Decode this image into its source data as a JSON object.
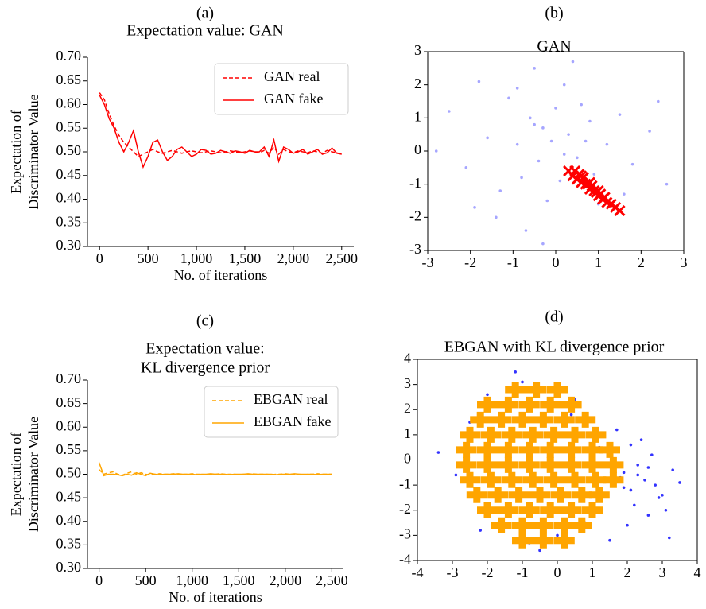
{
  "chart_data": [
    {
      "type": "line",
      "panel_label": "(a)",
      "title": [
        "Expectation value: GAN"
      ],
      "xlabel": "No. of iterations",
      "ylabel": [
        "Expectation of",
        "Discriminator Value"
      ],
      "spines": [
        "left",
        "bottom"
      ],
      "legend": "upper right",
      "x": [
        0,
        50,
        100,
        150,
        200,
        250,
        300,
        350,
        400,
        450,
        500,
        550,
        600,
        650,
        700,
        750,
        800,
        850,
        900,
        950,
        1000,
        1050,
        1100,
        1150,
        1200,
        1250,
        1300,
        1350,
        1400,
        1450,
        1500,
        1550,
        1600,
        1650,
        1700,
        1750,
        1800,
        1850,
        1900,
        1950,
        2000,
        2050,
        2100,
        2150,
        2200,
        2250,
        2300,
        2350,
        2400,
        2450,
        2500
      ],
      "series": [
        {
          "name": "GAN real",
          "color": "#ff0000",
          "linestyle": "dashed",
          "values": [
            0.625,
            0.61,
            0.58,
            0.555,
            0.535,
            0.52,
            0.51,
            0.5,
            0.49,
            0.495,
            0.5,
            0.505,
            0.5,
            0.497,
            0.5,
            0.503,
            0.5,
            0.497,
            0.5,
            0.502,
            0.5,
            0.498,
            0.5,
            0.502,
            0.5,
            0.498,
            0.5,
            0.502,
            0.5,
            0.498,
            0.5,
            0.502,
            0.5,
            0.498,
            0.503,
            0.497,
            0.51,
            0.495,
            0.505,
            0.5,
            0.498,
            0.502,
            0.5,
            0.498,
            0.502,
            0.5,
            0.497,
            0.503,
            0.5,
            0.498,
            0.495
          ]
        },
        {
          "name": "GAN fake",
          "color": "#ff0000",
          "linestyle": "solid",
          "values": [
            0.62,
            0.6,
            0.57,
            0.55,
            0.52,
            0.5,
            0.52,
            0.545,
            0.5,
            0.468,
            0.49,
            0.52,
            0.525,
            0.5,
            0.482,
            0.49,
            0.505,
            0.51,
            0.5,
            0.49,
            0.495,
            0.505,
            0.503,
            0.495,
            0.497,
            0.503,
            0.5,
            0.497,
            0.502,
            0.5,
            0.497,
            0.503,
            0.5,
            0.5,
            0.51,
            0.49,
            0.525,
            0.48,
            0.51,
            0.505,
            0.497,
            0.5,
            0.505,
            0.495,
            0.5,
            0.505,
            0.495,
            0.498,
            0.508,
            0.497,
            0.495
          ]
        }
      ],
      "xlim": [
        -125,
        2625
      ],
      "ylim": [
        0.3,
        0.7
      ],
      "xticks": [
        0,
        500,
        {
          "value": 1000,
          "label": "1,000"
        },
        {
          "value": 1500,
          "label": "1,500"
        },
        {
          "value": 2000,
          "label": "2,000"
        },
        {
          "value": 2500,
          "label": "2,500"
        }
      ],
      "yticks": [
        {
          "value": 0.3,
          "label": "0.30"
        },
        0.35,
        {
          "value": 0.4,
          "label": "0.40"
        },
        0.45,
        {
          "value": 0.5,
          "label": "0.50"
        },
        0.55,
        {
          "value": 0.6,
          "label": "0.60"
        },
        0.65,
        {
          "value": 0.7,
          "label": "0.70"
        }
      ]
    },
    {
      "type": "scatter",
      "panel_label": "(b)",
      "title": [
        "GAN"
      ],
      "spines": [
        "left",
        "bottom",
        "right",
        "top"
      ],
      "series": [
        {
          "color": "#0000ff",
          "marker": "dot",
          "opacity": 0.35,
          "x": [
            -2.5,
            -2.1,
            -1.8,
            -1.6,
            -1.3,
            -1.1,
            -0.9,
            -0.8,
            -0.6,
            -0.5,
            -0.4,
            -0.3,
            -0.2,
            -0.1,
            0,
            0.1,
            0.2,
            0.3,
            0.5,
            0.6,
            0.8,
            1.0,
            1.2,
            1.5,
            1.8,
            2.2,
            2.6,
            -1.4,
            -0.7,
            0.4,
            -2.8,
            -0.9,
            0.9,
            1.6,
            -0.3,
            0.7,
            -1.9,
            2.4,
            -0.5,
            0.2
          ],
          "y": [
            1.2,
            -0.5,
            2.1,
            0.4,
            -1.2,
            1.6,
            0.2,
            -0.8,
            1.0,
            2.5,
            -0.3,
            0.7,
            -1.5,
            0.3,
            1.3,
            -0.9,
            2.0,
            0.5,
            -0.2,
            1.4,
            0.9,
            -1.6,
            0.2,
            1.1,
            -0.4,
            0.6,
            -1.0,
            -2.0,
            -2.4,
            2.7,
            0.0,
            1.9,
            -0.7,
            -1.3,
            -2.8,
            0.3,
            -1.7,
            1.5,
            0.8,
            -0.1
          ]
        },
        {
          "color": "#ff0000",
          "marker": "x",
          "opacity": 1,
          "x": [
            0.3,
            0.4,
            0.45,
            0.5,
            0.55,
            0.6,
            0.65,
            0.7,
            0.75,
            0.8,
            0.85,
            0.9,
            0.95,
            1.0,
            1.05,
            1.1,
            1.15,
            1.2,
            1.3,
            1.4,
            1.5,
            0.6,
            0.8,
            1.0
          ],
          "y": [
            -0.6,
            -0.75,
            -0.6,
            -0.85,
            -0.7,
            -0.95,
            -0.8,
            -1.0,
            -1.0,
            -1.15,
            -1.05,
            -1.2,
            -1.25,
            -1.35,
            -1.3,
            -1.45,
            -1.4,
            -1.55,
            -1.6,
            -1.7,
            -1.8,
            -0.75,
            -0.95,
            -1.2
          ]
        }
      ],
      "xlim": [
        -3,
        3
      ],
      "ylim": [
        -3,
        3
      ],
      "xticks": [
        -3,
        -2,
        -1,
        0,
        1,
        2,
        3
      ],
      "yticks": [
        -3,
        -2,
        -1,
        0,
        1,
        2,
        3
      ]
    },
    {
      "type": "line",
      "panel_label": "(c)",
      "title": [
        "Expectation value:",
        "KL divergence prior"
      ],
      "xlabel": "No. of iterations",
      "ylabel": [
        "Expectation of",
        "Discriminator Value"
      ],
      "spines": [
        "left",
        "bottom"
      ],
      "legend": "upper right",
      "x": [
        0,
        50,
        100,
        150,
        200,
        250,
        300,
        350,
        400,
        450,
        500,
        550,
        600,
        650,
        700,
        750,
        800,
        850,
        900,
        950,
        1000,
        1050,
        1100,
        1150,
        1200,
        1250,
        1300,
        1350,
        1400,
        1450,
        1500,
        1550,
        1600,
        1650,
        1700,
        1750,
        1800,
        1850,
        1900,
        1950,
        2000,
        2050,
        2100,
        2150,
        2200,
        2250,
        2300,
        2350,
        2400,
        2450,
        2500
      ],
      "series": [
        {
          "name": "EBGAN real",
          "color": "#ffa500",
          "linestyle": "dashed",
          "values": [
            0.51,
            0.5,
            0.503,
            0.505,
            0.5,
            0.498,
            0.502,
            0.505,
            0.5,
            0.503,
            0.5,
            0.498,
            0.5,
            0.501,
            0.5,
            0.5,
            0.501,
            0.5,
            0.5,
            0.5,
            0.501,
            0.5,
            0.5,
            0.499,
            0.5,
            0.5,
            0.501,
            0.5,
            0.5,
            0.5,
            0.499,
            0.5,
            0.5,
            0.501,
            0.5,
            0.5,
            0.5,
            0.499,
            0.5,
            0.5,
            0.501,
            0.5,
            0.5,
            0.5,
            0.499,
            0.5,
            0.5,
            0.501,
            0.5,
            0.5,
            0.5
          ]
        },
        {
          "name": "EBGAN fake",
          "color": "#ffa500",
          "linestyle": "solid",
          "values": [
            0.525,
            0.497,
            0.5,
            0.5,
            0.499,
            0.497,
            0.5,
            0.498,
            0.503,
            0.5,
            0.497,
            0.502,
            0.5,
            0.499,
            0.5,
            0.5,
            0.5,
            0.501,
            0.5,
            0.5,
            0.5,
            0.499,
            0.5,
            0.5,
            0.501,
            0.5,
            0.5,
            0.5,
            0.499,
            0.5,
            0.5,
            0.5,
            0.501,
            0.5,
            0.5,
            0.5,
            0.5,
            0.5,
            0.499,
            0.5,
            0.5,
            0.5,
            0.501,
            0.5,
            0.5,
            0.5,
            0.5,
            0.499,
            0.5,
            0.5,
            0.5
          ]
        }
      ],
      "xlim": [
        -125,
        2625
      ],
      "ylim": [
        0.3,
        0.7
      ],
      "xticks": [
        0,
        500,
        {
          "value": 1000,
          "label": "1,000"
        },
        {
          "value": 1500,
          "label": "1,500"
        },
        {
          "value": 2000,
          "label": "2,000"
        },
        {
          "value": 2500,
          "label": "2,500"
        }
      ],
      "yticks": [
        {
          "value": 0.3,
          "label": "0.30"
        },
        0.35,
        {
          "value": 0.4,
          "label": "0.40"
        },
        0.45,
        {
          "value": 0.5,
          "label": "0.50"
        },
        0.55,
        {
          "value": 0.6,
          "label": "0.60"
        },
        0.65,
        {
          "value": 0.7,
          "label": "0.70"
        }
      ]
    },
    {
      "type": "scatter",
      "panel_label": "(d)",
      "title": [
        "EBGAN with KL divergence prior"
      ],
      "spines": [
        "left",
        "bottom",
        "right",
        "top"
      ],
      "series": [
        {
          "color": "#0000ff",
          "marker": "dot",
          "opacity": 0.8,
          "x": [
            -3.4,
            -2.9,
            -2.5,
            -2.0,
            -1.6,
            -1.2,
            -0.8,
            -0.4,
            0,
            0.4,
            0.8,
            1.2,
            1.6,
            1.9,
            2.1,
            2.3,
            2.5,
            2.7,
            2.9,
            3.1,
            3.3,
            3.5,
            2.0,
            2.2,
            1.8,
            2.4,
            2.6,
            1.7,
            2.8,
            3.0,
            -2.2,
            -1.0,
            0.5,
            1.5,
            -0.5,
            2.1,
            2.3,
            1.9,
            2.6,
            3.2
          ],
          "y": [
            0.3,
            -0.6,
            1.5,
            2.6,
            -2.4,
            3.5,
            -3.3,
            2.9,
            -3.0,
            1.8,
            -2.5,
            0.5,
            -1.0,
            -0.5,
            -1.2,
            -0.2,
            -0.8,
            0.2,
            -1.5,
            -2.0,
            -0.4,
            -0.9,
            -2.6,
            -1.8,
            -0.7,
            0.8,
            -0.3,
            1.2,
            -1.0,
            -1.4,
            -2.8,
            3.1,
            2.4,
            -3.2,
            -3.6,
            0.6,
            -0.6,
            -1.1,
            -2.2,
            -3.1
          ]
        },
        {
          "color": "#ffa500",
          "marker": "plus",
          "opacity": 1,
          "x": [
            -1.2,
            -0.6,
            0.0,
            -2.0,
            -1.4,
            -0.8,
            -0.2,
            0.4,
            -2.2,
            -1.6,
            -1.0,
            -0.4,
            0.2,
            0.8,
            -2.5,
            -1.9,
            -1.3,
            -0.7,
            -0.1,
            0.5,
            1.1,
            -2.6,
            -2.0,
            -1.4,
            -0.8,
            -0.2,
            0.4,
            1.0,
            1.5,
            -2.6,
            -2.0,
            -1.4,
            -0.8,
            -0.2,
            0.4,
            1.0,
            1.6,
            -2.5,
            -1.9,
            -1.3,
            -0.7,
            -0.1,
            0.5,
            1.1,
            1.6,
            -2.3,
            -1.7,
            -1.1,
            -0.5,
            0.1,
            0.7,
            1.2,
            -2.0,
            -1.4,
            -0.8,
            -0.2,
            0.4,
            1.0,
            -1.6,
            -1.0,
            -0.4,
            0.2,
            0.7,
            -1.0,
            -0.4,
            0.2
          ],
          "y": [
            2.8,
            2.8,
            2.8,
            2.2,
            2.2,
            2.2,
            2.2,
            2.2,
            1.6,
            1.6,
            1.6,
            1.6,
            1.6,
            1.6,
            1.0,
            1.0,
            1.0,
            1.0,
            1.0,
            1.0,
            1.0,
            0.4,
            0.4,
            0.4,
            0.4,
            0.4,
            0.4,
            0.4,
            0.4,
            -0.2,
            -0.2,
            -0.2,
            -0.2,
            -0.2,
            -0.2,
            -0.2,
            -0.2,
            -0.8,
            -0.8,
            -0.8,
            -0.8,
            -0.8,
            -0.8,
            -0.8,
            -0.8,
            -1.4,
            -1.4,
            -1.4,
            -1.4,
            -1.4,
            -1.4,
            -1.4,
            -2.0,
            -2.0,
            -2.0,
            -2.0,
            -2.0,
            -2.0,
            -2.6,
            -2.6,
            -2.6,
            -2.6,
            -2.6,
            -3.2,
            -3.2,
            -3.2
          ]
        }
      ],
      "xlim": [
        -4,
        4
      ],
      "ylim": [
        -4,
        4
      ],
      "xticks": [
        -4,
        -3,
        -2,
        -1,
        0,
        1,
        2,
        3,
        4
      ],
      "yticks": [
        -4,
        -3,
        -2,
        -1,
        0,
        1,
        2,
        3,
        4
      ]
    }
  ]
}
